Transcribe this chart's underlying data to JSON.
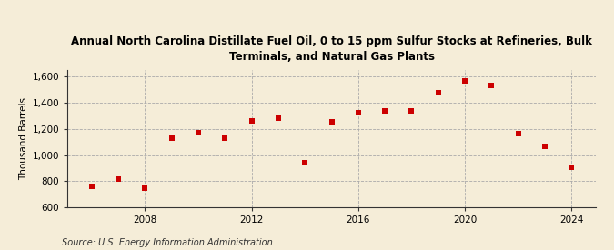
{
  "title": "Annual North Carolina Distillate Fuel Oil, 0 to 15 ppm Sulfur Stocks at Refineries, Bulk\nTerminals, and Natural Gas Plants",
  "ylabel": "Thousand Barrels",
  "source": "Source: U.S. Energy Information Administration",
  "years": [
    2006,
    2007,
    2008,
    2009,
    2010,
    2011,
    2012,
    2013,
    2014,
    2015,
    2016,
    2017,
    2018,
    2019,
    2020,
    2021,
    2022,
    2023,
    2024
  ],
  "values": [
    760,
    820,
    748,
    1130,
    1170,
    1130,
    1260,
    1285,
    940,
    1255,
    1325,
    1335,
    1335,
    1475,
    1565,
    1530,
    1165,
    1068,
    910
  ],
  "ylim": [
    600,
    1650
  ],
  "yticks": [
    600,
    800,
    1000,
    1200,
    1400,
    1600
  ],
  "xticks": [
    2008,
    2012,
    2016,
    2020,
    2024
  ],
  "marker_color": "#cc0000",
  "marker": "s",
  "marker_size": 4,
  "bg_color": "#f5edd8",
  "plot_bg_color": "#f5edd8",
  "grid_color": "#aaaaaa",
  "title_fontsize": 8.5,
  "axis_fontsize": 7.5,
  "source_fontsize": 7.0
}
